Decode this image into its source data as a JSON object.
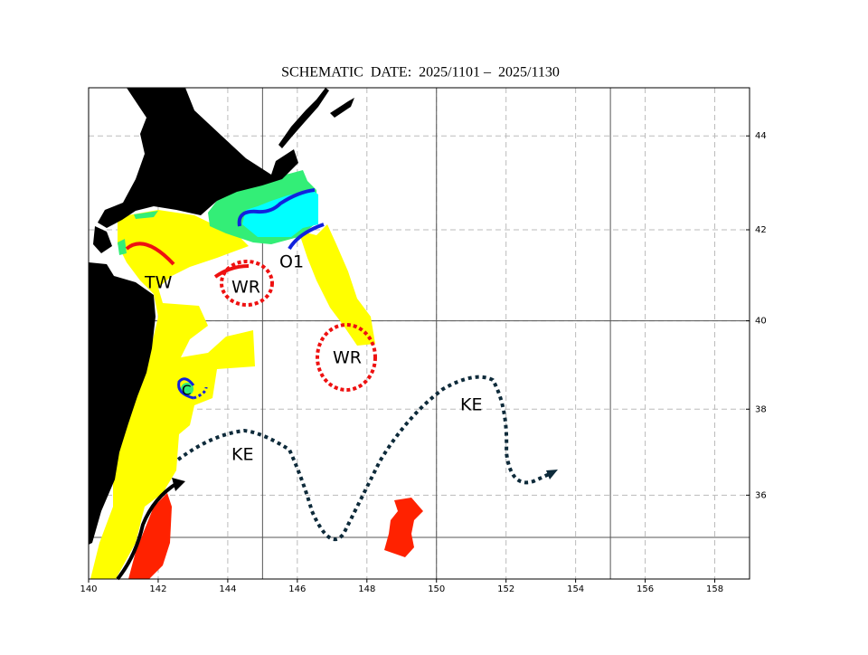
{
  "chart_data": {
    "type": "map",
    "title": "SCHEMATIC  DATE:  2025/1101 –  2025/1130",
    "projection": "mercator",
    "xlim": [
      140,
      159
    ],
    "ylim": [
      34,
      45
    ],
    "xticks": [
      140,
      142,
      144,
      146,
      148,
      150,
      152,
      154,
      156,
      158
    ],
    "yticks": [
      36,
      38,
      40,
      42,
      44
    ],
    "major_grid": {
      "x": [
        145,
        150,
        155
      ],
      "y": [
        35,
        40
      ]
    },
    "labels": [
      "TW",
      "WR",
      "O1",
      "WR",
      "C",
      "KE",
      "KE"
    ]
  }
}
